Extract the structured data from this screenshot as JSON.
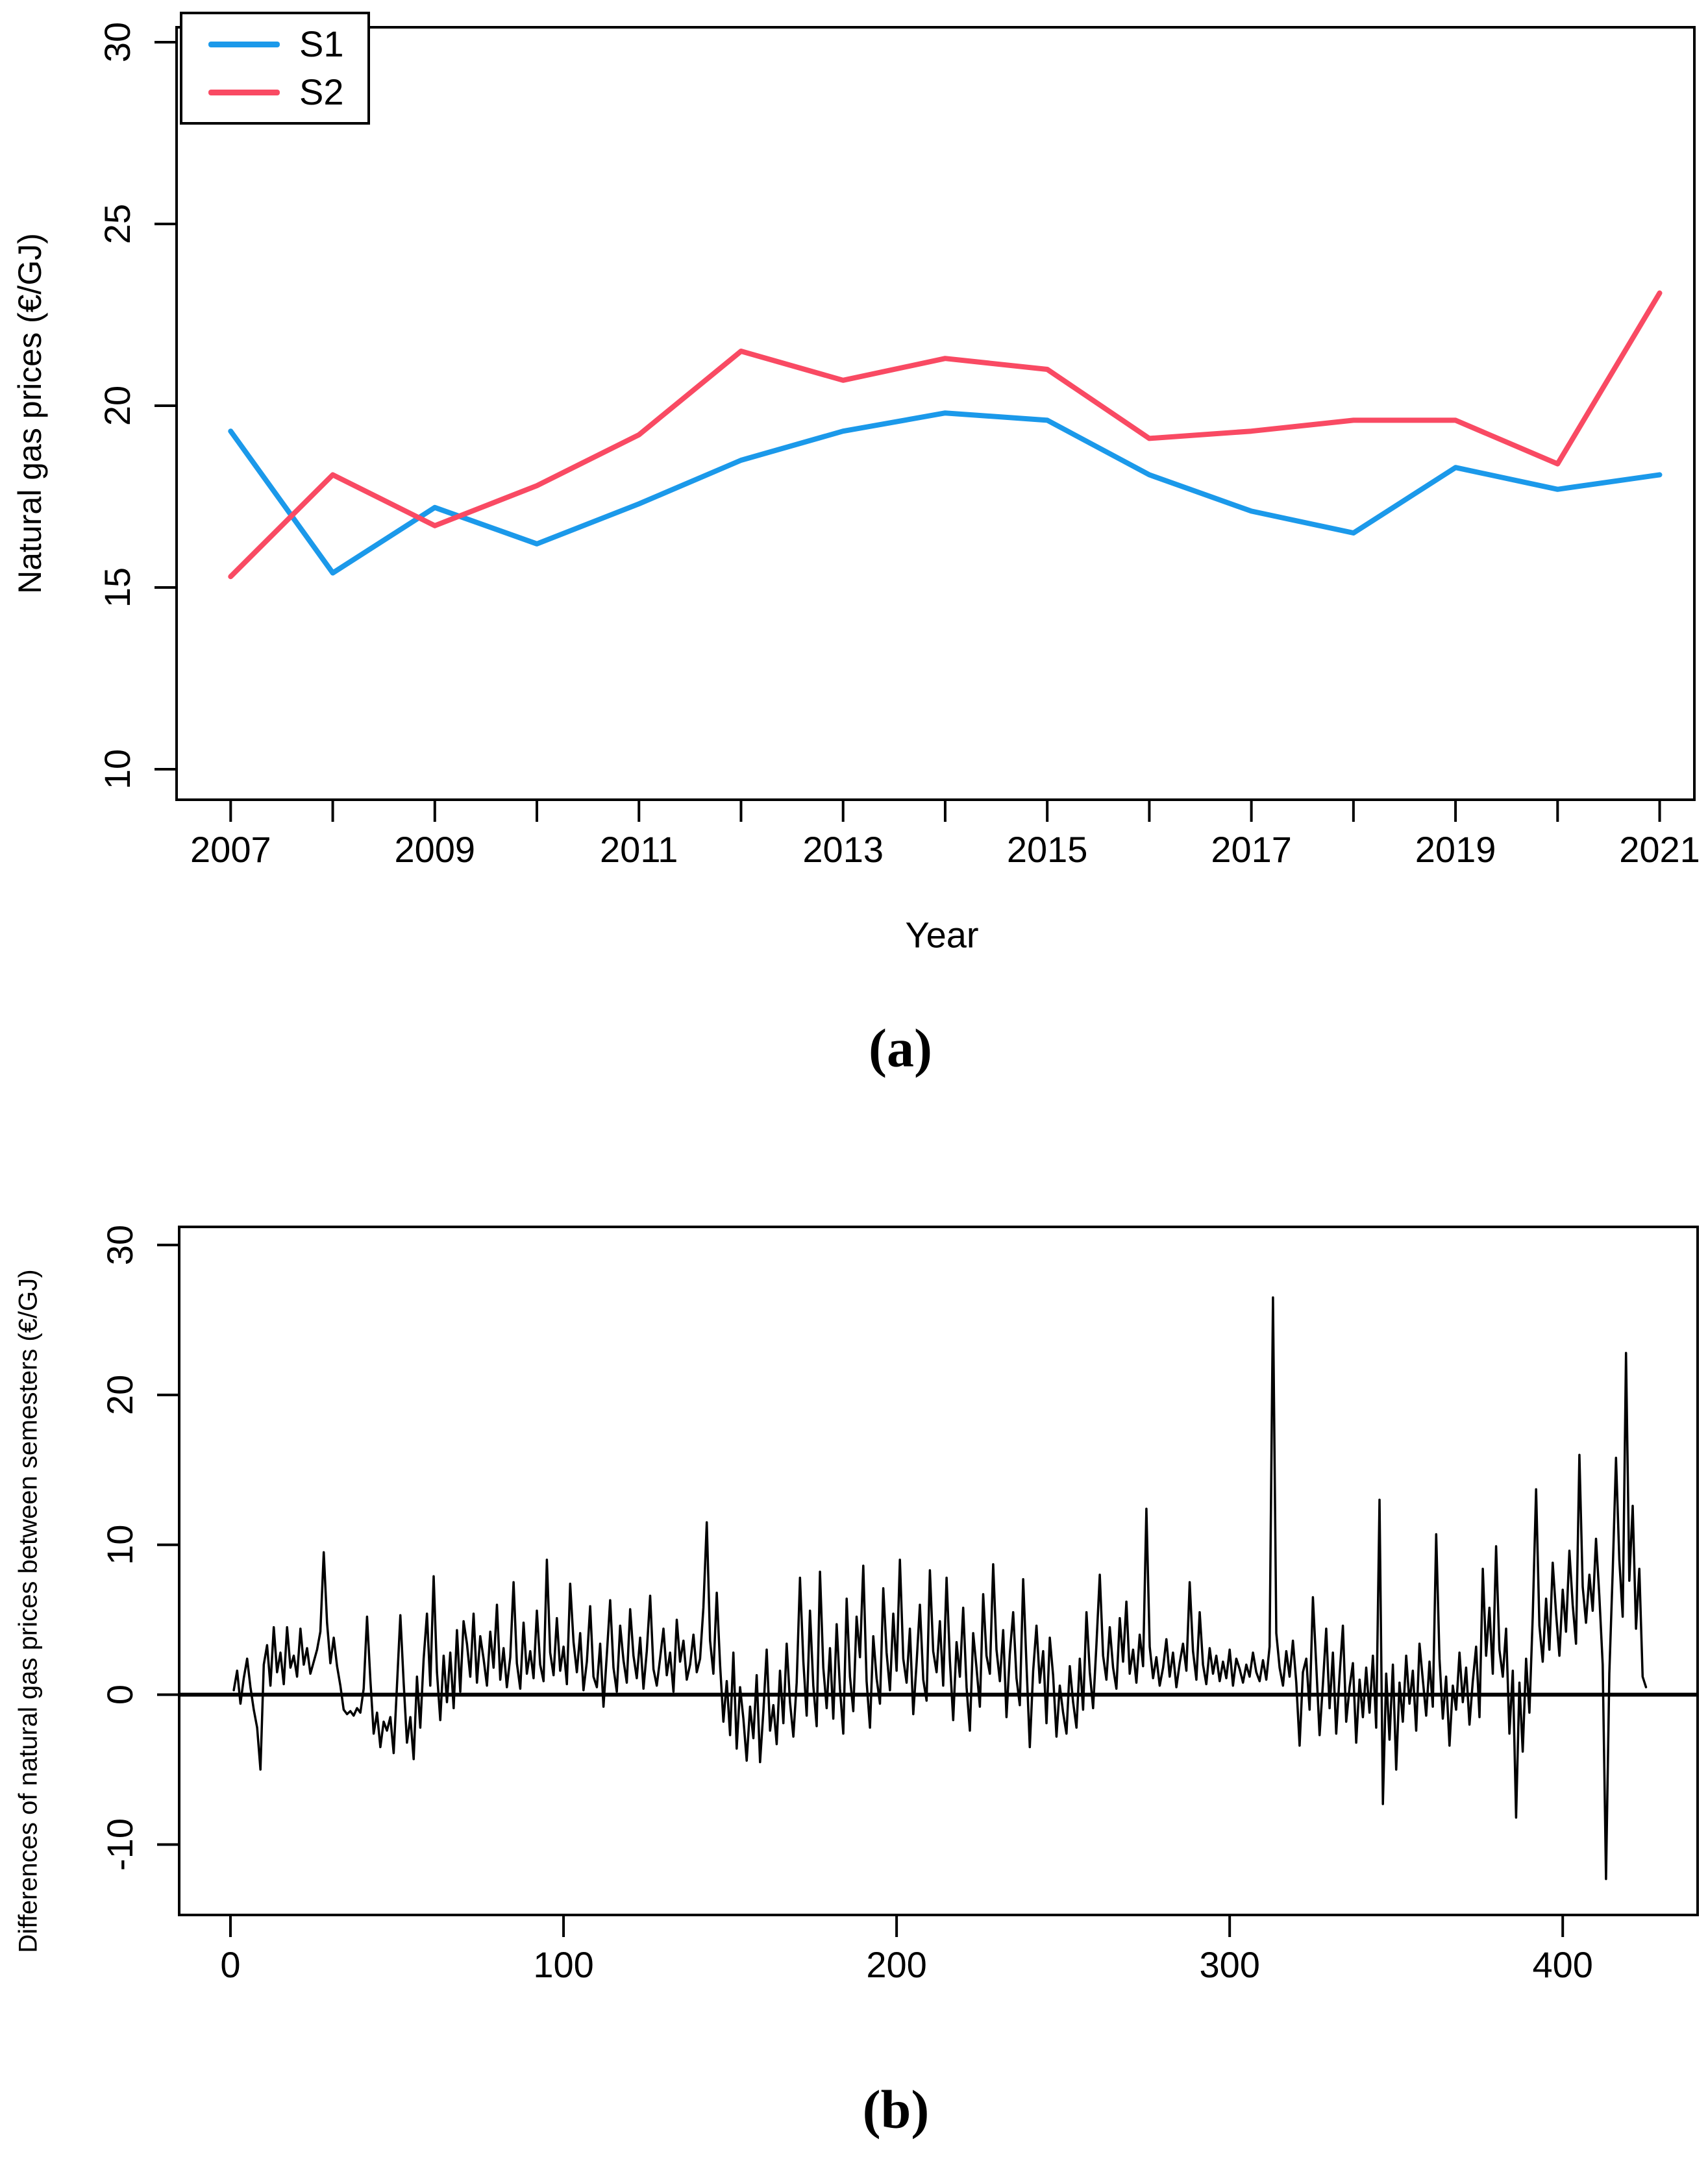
{
  "figure": {
    "captions": {
      "a": "(a)",
      "b": "(b)"
    }
  },
  "chart_data": [
    {
      "id": "a",
      "type": "line",
      "title": "",
      "xlabel": "Year",
      "ylabel": "Natural gas prices (€/GJ)",
      "grid": false,
      "legend_position": "top-left",
      "xlim": [
        2006.47,
        2021.34
      ],
      "ylim": [
        9.16,
        30.41
      ],
      "xticks": [
        2007,
        2008,
        2009,
        2010,
        2011,
        2012,
        2013,
        2014,
        2015,
        2016,
        2017,
        2018,
        2019,
        2020,
        2021
      ],
      "xtick_labels": [
        "2007",
        "",
        "2009",
        "",
        "2011",
        "",
        "2013",
        "",
        "2015",
        "",
        "2017",
        "",
        "2019",
        "",
        "2021"
      ],
      "yticks": [
        10,
        15,
        20,
        25,
        30
      ],
      "ytick_labels": [
        "10",
        "15",
        "20",
        "25",
        "30"
      ],
      "x": [
        2007,
        2008,
        2009,
        2010,
        2011,
        2012,
        2013,
        2014,
        2015,
        2016,
        2017,
        2018,
        2019,
        2020,
        2021
      ],
      "series": [
        {
          "name": "S1",
          "color": "#1B99EA",
          "values": [
            19.3,
            15.4,
            17.2,
            16.2,
            17.3,
            18.5,
            19.3,
            19.8,
            19.6,
            18.1,
            17.1,
            16.5,
            18.3,
            17.7,
            18.1
          ]
        },
        {
          "name": "S2",
          "color": "#F94A63",
          "values": [
            15.3,
            18.1,
            16.7,
            17.8,
            19.2,
            21.5,
            20.7,
            21.3,
            21.0,
            19.1,
            19.3,
            19.6,
            19.6,
            18.4,
            23.1
          ]
        }
      ]
    },
    {
      "id": "b",
      "type": "line",
      "title": "",
      "xlabel": "",
      "ylabel": "Differences of natural gas prices between semesters (€/GJ)",
      "grid": false,
      "zero_line": true,
      "xlim": [
        -15.4,
        440.5
      ],
      "ylim": [
        -14.7,
        31.21
      ],
      "xticks": [
        0,
        100,
        200,
        300,
        400
      ],
      "xtick_labels": [
        "0",
        "100",
        "200",
        "300",
        "400"
      ],
      "yticks": [
        -10,
        0,
        10,
        20,
        30
      ],
      "ytick_labels": [
        "-10",
        "0",
        "10",
        "20",
        "30"
      ],
      "x_start": 1,
      "series": [
        {
          "name": "differences",
          "color": "#000000",
          "values": [
            0.3,
            1.6,
            -0.6,
            1.1,
            2.4,
            0.5,
            -1.0,
            -2.2,
            -5.0,
            2.0,
            3.3,
            0.6,
            4.5,
            1.5,
            2.8,
            0.7,
            4.5,
            1.8,
            2.6,
            1.2,
            4.4,
            2.0,
            3.1,
            1.4,
            2.2,
            3.0,
            4.2,
            9.5,
            4.8,
            2.1,
            3.8,
            1.9,
            0.6,
            -1.0,
            -1.3,
            -1.1,
            -1.4,
            -0.9,
            -1.2,
            0.4,
            5.2,
            1.0,
            -2.6,
            -1.2,
            -3.5,
            -1.8,
            -2.4,
            -1.5,
            -3.9,
            0.6,
            5.3,
            0.8,
            -3.2,
            -1.5,
            -4.3,
            1.2,
            -2.2,
            2.4,
            5.4,
            0.6,
            7.9,
            1.5,
            -1.7,
            2.6,
            -0.5,
            2.8,
            -0.9,
            4.3,
            0.2,
            4.9,
            3.4,
            1.2,
            5.4,
            0.8,
            3.9,
            2.4,
            0.6,
            4.2,
            1.8,
            6.0,
            1.0,
            3.1,
            0.5,
            2.5,
            7.5,
            2.1,
            0.4,
            4.8,
            1.4,
            2.9,
            1.1,
            5.6,
            2.0,
            0.9,
            9.0,
            2.8,
            1.3,
            5.1,
            1.6,
            3.2,
            0.7,
            7.4,
            3.5,
            1.5,
            4.1,
            0.3,
            2.2,
            5.9,
            1.2,
            0.5,
            3.4,
            -0.8,
            2.7,
            6.3,
            1.8,
            0.2,
            4.6,
            2.3,
            0.8,
            5.7,
            2.6,
            1.1,
            3.8,
            0.4,
            2.9,
            6.6,
            1.7,
            0.6,
            2.4,
            4.4,
            1.3,
            2.8,
            0.2,
            5.0,
            2.2,
            3.6,
            1.0,
            2.0,
            4.0,
            1.5,
            2.4,
            5.8,
            11.5,
            3.6,
            1.4,
            6.8,
            2.0,
            -1.8,
            0.9,
            -2.7,
            2.8,
            -3.6,
            0.5,
            -1.6,
            -4.4,
            -0.8,
            -2.9,
            1.3,
            -4.5,
            -1.1,
            3.0,
            -2.4,
            -0.7,
            -3.3,
            1.6,
            -1.9,
            3.4,
            -0.5,
            -2.8,
            0.8,
            7.8,
            2.2,
            -1.4,
            5.6,
            0.6,
            -2.1,
            8.2,
            1.8,
            -0.9,
            3.1,
            -1.6,
            4.7,
            0.4,
            -2.6,
            6.4,
            1.2,
            -1.1,
            5.2,
            2.5,
            8.6,
            0.9,
            -2.2,
            3.9,
            1.1,
            -0.6,
            7.1,
            2.8,
            0.3,
            5.4,
            1.6,
            9.0,
            2.4,
            0.8,
            4.4,
            -1.3,
            2.1,
            6.0,
            1.0,
            -0.4,
            8.3,
            2.9,
            1.5,
            4.9,
            0.6,
            7.8,
            2.3,
            -1.7,
            3.5,
            1.2,
            5.8,
            0.5,
            -2.4,
            4.1,
            1.8,
            -0.8,
            6.7,
            2.6,
            1.4,
            8.7,
            3.0,
            0.9,
            4.3,
            -1.5,
            2.7,
            5.5,
            1.1,
            -0.7,
            7.7,
            2.0,
            -3.5,
            1.6,
            4.6,
            0.8,
            2.9,
            -1.9,
            3.8,
            1.3,
            -2.8,
            0.6,
            -1.2,
            -2.6,
            1.9,
            -0.5,
            -2.2,
            2.4,
            -1.0,
            5.5,
            1.5,
            -0.9,
            3.3,
            8.0,
            2.6,
            1.0,
            4.5,
            1.8,
            0.4,
            5.1,
            2.2,
            6.2,
            1.4,
            3.0,
            0.8,
            4.0,
            1.9,
            12.4,
            3.2,
            1.1,
            2.5,
            0.6,
            1.8,
            3.7,
            1.2,
            2.8,
            0.5,
            2.1,
            3.4,
            1.6,
            7.5,
            2.9,
            1.0,
            5.5,
            2.0,
            0.7,
            3.1,
            1.4,
            2.6,
            0.9,
            2.2,
            1.1,
            3.0,
            0.6,
            2.4,
            1.7,
            0.8,
            2.0,
            1.2,
            2.8,
            1.5,
            0.9,
            2.3,
            1.0,
            3.2,
            26.5,
            4.1,
            1.8,
            0.6,
            2.9,
            1.2,
            3.6,
            0.8,
            -3.4,
            1.5,
            2.4,
            -1.0,
            6.5,
            1.9,
            -2.7,
            0.7,
            4.4,
            -0.9,
            2.8,
            -2.6,
            1.3,
            4.6,
            -1.8,
            0.5,
            2.1,
            -3.2,
            1.0,
            -1.5,
            1.8,
            -1.2,
            2.6,
            -2.2,
            13.0,
            -7.3,
            1.4,
            -3.0,
            2.0,
            -5.0,
            0.8,
            -1.8,
            2.6,
            -0.6,
            1.6,
            -2.4,
            3.4,
            1.0,
            -1.4,
            2.2,
            -0.8,
            10.7,
            2.4,
            -1.6,
            1.2,
            -3.4,
            0.6,
            -1.0,
            2.8,
            -0.5,
            1.8,
            -2.0,
            0.9,
            3.2,
            -1.5,
            8.4,
            2.6,
            5.8,
            1.4,
            9.9,
            3.0,
            1.2,
            4.4,
            -2.6,
            1.6,
            -8.2,
            0.8,
            -3.8,
            2.4,
            -1.2,
            5.2,
            13.7,
            4.6,
            2.2,
            6.4,
            3.0,
            8.8,
            5.4,
            2.6,
            7.0,
            4.2,
            9.6,
            6.0,
            3.4,
            16.0,
            7.2,
            4.8,
            8.0,
            5.6,
            10.4,
            6.6,
            2.0,
            -12.3,
            1.4,
            8.2,
            15.8,
            9.0,
            5.2,
            22.8,
            7.6,
            12.6,
            4.4,
            8.4,
            1.2,
            0.5
          ]
        }
      ]
    }
  ]
}
